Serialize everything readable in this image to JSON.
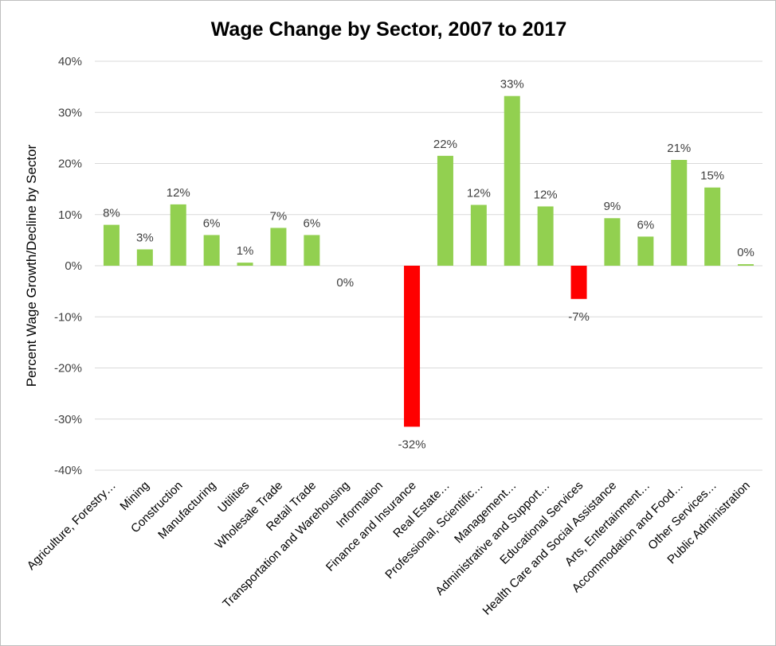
{
  "chart_data": {
    "type": "bar",
    "title": "Wage Change by Sector, 2007 to 2017",
    "xlabel": "",
    "ylabel": "Percent Wage Growth/Decline by Sector",
    "ylim": [
      -40,
      40
    ],
    "yticks": [
      40,
      30,
      20,
      10,
      0,
      -10,
      -20,
      -30,
      -40
    ],
    "ytick_labels": [
      "40%",
      "30%",
      "20%",
      "10%",
      "0%",
      "-10%",
      "-20%",
      "-30%",
      "-40%"
    ],
    "grid": true,
    "legend": "none",
    "categories": [
      "Agriculture, Forestry…",
      "Mining",
      "Construction",
      "Manufacturing",
      "Utilities",
      "Wholesale Trade",
      "Retail Trade",
      "Transportation and Warehousing",
      "Information",
      "Finance and Insurance",
      "Real Estate…",
      "Professional, Scientific…",
      "Management…",
      "Administrative and Support…",
      "Educational Services",
      "Health Care and Social Assistance",
      "Arts, Entertainment…",
      "Accommodation and Food…",
      "Other Services…",
      "Public Administration"
    ],
    "values": [
      8,
      3.2,
      12,
      6,
      0.6,
      7.4,
      6,
      0,
      null,
      -31.5,
      21.5,
      11.9,
      33.2,
      11.6,
      -6.5,
      9.3,
      5.7,
      20.7,
      15.3,
      0.3
    ],
    "data_labels": [
      "8%",
      "3%",
      "12%",
      "6%",
      "1%",
      "7%",
      "6%",
      "0%",
      "",
      "-32%",
      "22%",
      "12%",
      "33%",
      "12%",
      "-7%",
      "9%",
      "6%",
      "21%",
      "15%",
      "0%"
    ],
    "colors": {
      "positive": "#92d050",
      "negative": "#ff0000",
      "grid": "#d9d9d9"
    }
  }
}
